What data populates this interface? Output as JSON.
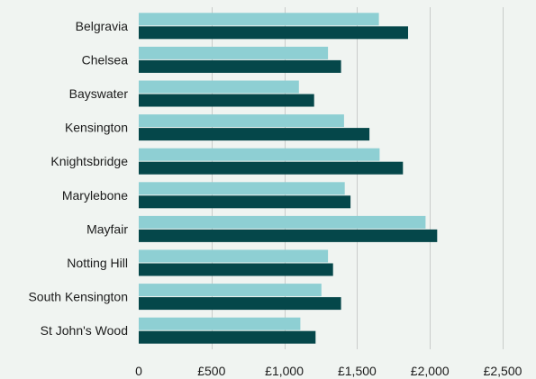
{
  "chart_data": {
    "type": "bar",
    "orientation": "horizontal",
    "title": "",
    "xlabel": "",
    "ylabel": "",
    "categories": [
      "Belgravia",
      "Chelsea",
      "Bayswater",
      "Kensington",
      "Knightsbridge",
      "Marylebone",
      "Mayfair",
      "Notting Hill",
      "South Kensington",
      "St John's Wood"
    ],
    "series": [
      {
        "values": [
          1650,
          1300,
          1100,
          1410,
          1655,
          1415,
          1970,
          1300,
          1255,
          1110
        ],
        "color": "#8ecfd3"
      },
      {
        "values": [
          1850,
          1390,
          1205,
          1585,
          1815,
          1455,
          2050,
          1335,
          1390,
          1215
        ],
        "color": "#05474a"
      }
    ],
    "xlim": [
      0,
      2500
    ],
    "xticks": [
      {
        "value": 0,
        "label": "0"
      },
      {
        "value": 500,
        "label": "£500"
      },
      {
        "value": 1000,
        "label": "£1,000"
      },
      {
        "value": 1500,
        "label": "£1,500"
      },
      {
        "value": 2000,
        "label": "£2,000"
      },
      {
        "value": 2500,
        "label": "£2,500"
      }
    ],
    "grid": "vertical",
    "legend": "none"
  }
}
